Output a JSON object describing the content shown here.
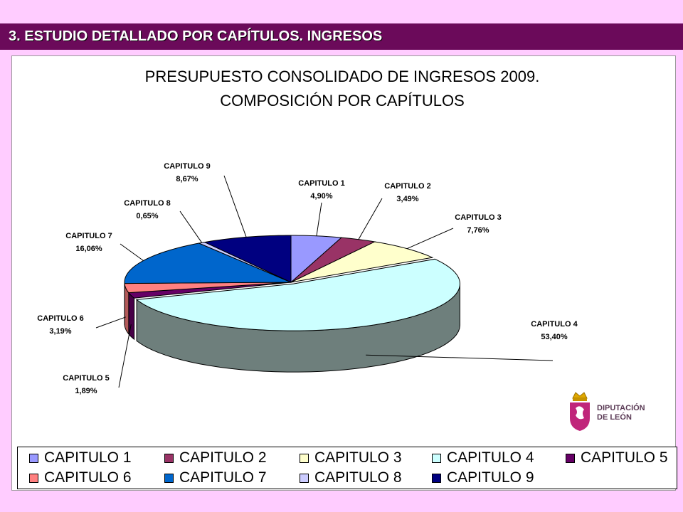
{
  "header": {
    "title": "3. ESTUDIO DETALLADO POR CAPÍTULOS. INGRESOS"
  },
  "logo": {
    "text": "DIPUTACIÓN\nDE LEÓN"
  },
  "colors": {
    "background": "#ffccff",
    "header_bar": "#6b0a5a",
    "chart_background": "#ffffff"
  },
  "chart_data": {
    "type": "pie",
    "title": [
      "PRESUPUESTO CONSOLIDADO DE INGRESOS 2009.",
      "COMPOSICIÓN POR CAPÍTULOS"
    ],
    "legend_position": "bottom",
    "slices": [
      {
        "label": "CAPITULO 1",
        "value": 4.9,
        "value_label": "4,90%",
        "color": "#9999ff",
        "side": "#6b6bb3"
      },
      {
        "label": "CAPITULO 2",
        "value": 3.49,
        "value_label": "3,49%",
        "color": "#993366",
        "side": "#6b2447"
      },
      {
        "label": "CAPITULO 3",
        "value": 7.76,
        "value_label": "7,76%",
        "color": "#ffffcc",
        "side": "#b3b38f"
      },
      {
        "label": "CAPITULO 4",
        "value": 53.4,
        "value_label": "53,40%",
        "color": "#ccffff",
        "side": "#6e7f7c"
      },
      {
        "label": "CAPITULO 5",
        "value": 1.89,
        "value_label": "1,89%",
        "color": "#660066",
        "side": "#470047"
      },
      {
        "label": "CAPITULO 6",
        "value": 3.19,
        "value_label": "3,19%",
        "color": "#ff8080",
        "side": "#b35a5a"
      },
      {
        "label": "CAPITULO 7",
        "value": 16.06,
        "value_label": "16,06%",
        "color": "#0066cc",
        "side": "#00478f"
      },
      {
        "label": "CAPITULO 8",
        "value": 0.65,
        "value_label": "0,65%",
        "color": "#ccccff",
        "side": "#8f8fb3"
      },
      {
        "label": "CAPITULO 9",
        "value": 8.67,
        "value_label": "8,67%",
        "color": "#000080",
        "side": "#00005a"
      }
    ]
  }
}
